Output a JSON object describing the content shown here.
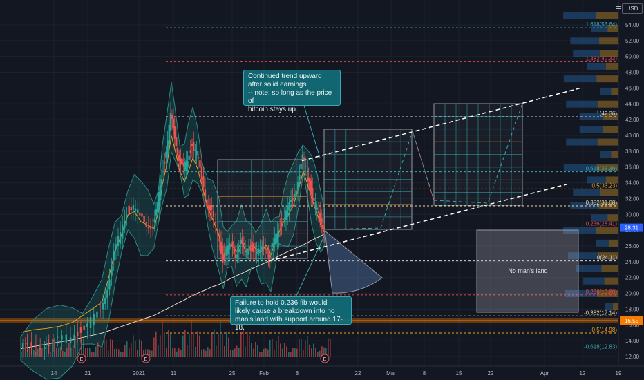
{
  "header": {
    "currency": "USD",
    "toggle_icon": "menu-lines-icon"
  },
  "chart_data": {
    "type": "candlestick",
    "x_ticks": [
      "14",
      "21",
      "2021",
      "11",
      "25",
      "Feb",
      "8",
      "22",
      "Mar",
      "8",
      "15",
      "22",
      "Apr",
      "12",
      "19"
    ],
    "y_ticks": [
      "12.00",
      "14.00",
      "16.00",
      "18.00",
      "20.00",
      "22.00",
      "24.00",
      "26.00",
      "28.00",
      "30.00",
      "32.00",
      "34.00",
      "36.00",
      "38.00",
      "40.00",
      "42.00",
      "44.00",
      "46.00",
      "48.00",
      "50.00",
      "52.00",
      "54.00"
    ],
    "ylim": [
      11,
      56
    ],
    "current_price": "28.31",
    "support_price": "16.55",
    "price_line": [
      [
        0,
        13.0
      ],
      [
        20,
        13.4
      ],
      [
        40,
        13.6
      ],
      [
        60,
        13.9
      ],
      [
        80,
        14.5
      ],
      [
        95,
        15.5
      ],
      [
        110,
        16.5
      ],
      [
        125,
        17.5
      ],
      [
        135,
        21
      ],
      [
        145,
        25
      ],
      [
        155,
        27.5
      ],
      [
        165,
        30.5
      ],
      [
        175,
        31
      ],
      [
        185,
        29.5
      ],
      [
        195,
        29
      ],
      [
        205,
        28.5
      ],
      [
        212,
        31
      ],
      [
        218,
        35
      ],
      [
        225,
        38
      ],
      [
        232,
        42.3
      ],
      [
        238,
        40
      ],
      [
        245,
        37
      ],
      [
        252,
        35.5
      ],
      [
        258,
        37
      ],
      [
        265,
        39
      ],
      [
        272,
        37.5
      ],
      [
        280,
        34.5
      ],
      [
        288,
        31.5
      ],
      [
        295,
        30
      ],
      [
        305,
        27.5
      ],
      [
        312,
        24.5
      ],
      [
        318,
        25.5
      ],
      [
        325,
        26
      ],
      [
        332,
        25
      ],
      [
        340,
        26.5
      ],
      [
        347,
        25
      ],
      [
        355,
        26
      ],
      [
        362,
        25.5
      ],
      [
        370,
        25
      ],
      [
        378,
        26
      ],
      [
        385,
        24.6
      ],
      [
        392,
        26.5
      ],
      [
        398,
        28
      ],
      [
        405,
        29.5
      ],
      [
        412,
        30.5
      ],
      [
        420,
        32
      ],
      [
        428,
        34.5
      ],
      [
        435,
        37
      ],
      [
        442,
        35
      ],
      [
        448,
        33
      ],
      [
        455,
        31
      ],
      [
        462,
        29
      ],
      [
        468,
        28.31
      ]
    ],
    "volume": [
      [
        0,
        0.35
      ],
      [
        20,
        0.45
      ],
      [
        40,
        0.3
      ],
      [
        60,
        0.55
      ],
      [
        80,
        0.4
      ],
      [
        100,
        0.6
      ],
      [
        120,
        0.7
      ],
      [
        140,
        0.5
      ],
      [
        160,
        0.8
      ],
      [
        180,
        0.65
      ],
      [
        200,
        0.9
      ],
      [
        215,
        1.0
      ],
      [
        230,
        0.7
      ],
      [
        245,
        0.6
      ],
      [
        260,
        0.5
      ],
      [
        275,
        0.55
      ],
      [
        290,
        0.75
      ],
      [
        305,
        0.45
      ],
      [
        320,
        0.5
      ],
      [
        335,
        0.4
      ],
      [
        350,
        0.45
      ],
      [
        365,
        0.35
      ],
      [
        380,
        0.4
      ],
      [
        395,
        0.5
      ],
      [
        410,
        0.55
      ],
      [
        425,
        0.6
      ],
      [
        440,
        0.7
      ],
      [
        455,
        0.5
      ],
      [
        468,
        0.45
      ]
    ],
    "fib_levels": [
      {
        "label": "1.618(53.64)",
        "value": 53.64,
        "color": "#3aa8b0"
      },
      {
        "label": "1.382(49.33)",
        "value": 49.33,
        "color": "#e0484c"
      },
      {
        "label": "1(42.36)",
        "value": 42.36,
        "color": "#d1d4dc"
      },
      {
        "label": "0.618(35.39)",
        "value": 35.39,
        "color": "#3aa8b0"
      },
      {
        "label": "0.5(33.23)",
        "value": 33.23,
        "color": "#f0a020"
      },
      {
        "label": "0.382(31.08)",
        "value": 31.08,
        "color": "#e8d8b0"
      },
      {
        "label": "0.236(28.41)",
        "value": 28.41,
        "color": "#e0484c"
      },
      {
        "label": "0(24.11)",
        "value": 24.11,
        "color": "#d1d4dc"
      },
      {
        "label": "-0.236(19.80)",
        "value": 19.8,
        "color": "#e0484c"
      },
      {
        "label": "-0.382(17.14)",
        "value": 17.14,
        "color": "#e8d8b0"
      },
      {
        "label": "-0.5(14.98)",
        "value": 14.98,
        "color": "#f0a020"
      },
      {
        "label": "-0.618(12.83)",
        "value": 12.83,
        "color": "#3aa8b0"
      }
    ],
    "annotations": {
      "upward_note": "Continued trend upward\nafter solid earnings\n-- note: so long as the price of\nbitcoin stays up",
      "failure_note": "Failure to hold 0.236 fib would\nlikely cause a breakdown into no\nman's land with support around 17-18.",
      "no_mans_land": "No man's land",
      "earnings_marker": "E"
    },
    "colors": {
      "background": "#131722",
      "up": "#26a69a",
      "down": "#ef5350",
      "support_band": "#f57c00",
      "note_bg": "#126e78"
    }
  }
}
